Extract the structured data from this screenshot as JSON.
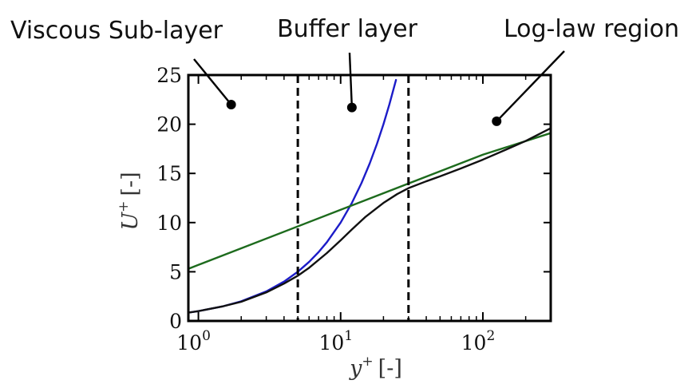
{
  "chart_data": {
    "type": "line",
    "title": "",
    "xlabel": {
      "symbol": "y",
      "sup": "+",
      "unit": "[-]"
    },
    "ylabel": {
      "symbol": "U",
      "sup": "+",
      "unit": "[-]"
    },
    "xscale": "log",
    "xlim": [
      0.85,
      300
    ],
    "ylim": [
      0,
      25
    ],
    "x_ticks": [
      {
        "base": "10",
        "exp": "0",
        "value": 1
      },
      {
        "base": "10",
        "exp": "1",
        "value": 10
      },
      {
        "base": "10",
        "exp": "2",
        "value": 100
      }
    ],
    "y_ticks": [
      "0",
      "5",
      "10",
      "15",
      "20",
      "25"
    ],
    "grid": false,
    "legend": "none",
    "series": [
      {
        "color": "#1c1cc8",
        "x": [
          0.85,
          1,
          1.5,
          2,
          3,
          4,
          5,
          6,
          7,
          8,
          10,
          12,
          14,
          16,
          18,
          20,
          22,
          24.5
        ],
        "y": [
          0.85,
          1,
          1.5,
          2,
          3,
          4,
          5,
          6,
          7,
          8,
          10,
          12,
          14,
          16,
          18,
          20,
          22,
          24.5
        ]
      },
      {
        "color": "#1d6b1d",
        "x": [
          0.85,
          1,
          10,
          100,
          300
        ],
        "y": [
          5.3,
          5.7,
          11.3,
          16.9,
          19.1
        ]
      },
      {
        "color": "#111111",
        "x": [
          0.85,
          1,
          1.5,
          2,
          3,
          4,
          5,
          6,
          8,
          10,
          12,
          15,
          20,
          25,
          30,
          40,
          50,
          70,
          100,
          150,
          200,
          300
        ],
        "y": [
          0.85,
          1,
          1.5,
          1.95,
          2.9,
          3.8,
          4.6,
          5.4,
          6.9,
          8.2,
          9.3,
          10.6,
          12.0,
          12.9,
          13.5,
          14.2,
          14.7,
          15.5,
          16.4,
          17.5,
          18.3,
          19.6
        ]
      }
    ],
    "vlines": [
      {
        "x": 5,
        "style": "dashed"
      },
      {
        "x": 30,
        "style": "dashed"
      }
    ],
    "annotations": [
      {
        "text": "Viscous Sub-layer",
        "point": [
          1.7,
          22
        ]
      },
      {
        "text": "Buffer layer",
        "point": [
          12,
          21.7
        ]
      },
      {
        "text": "Log-law region",
        "point": [
          125,
          20.3
        ]
      }
    ]
  }
}
